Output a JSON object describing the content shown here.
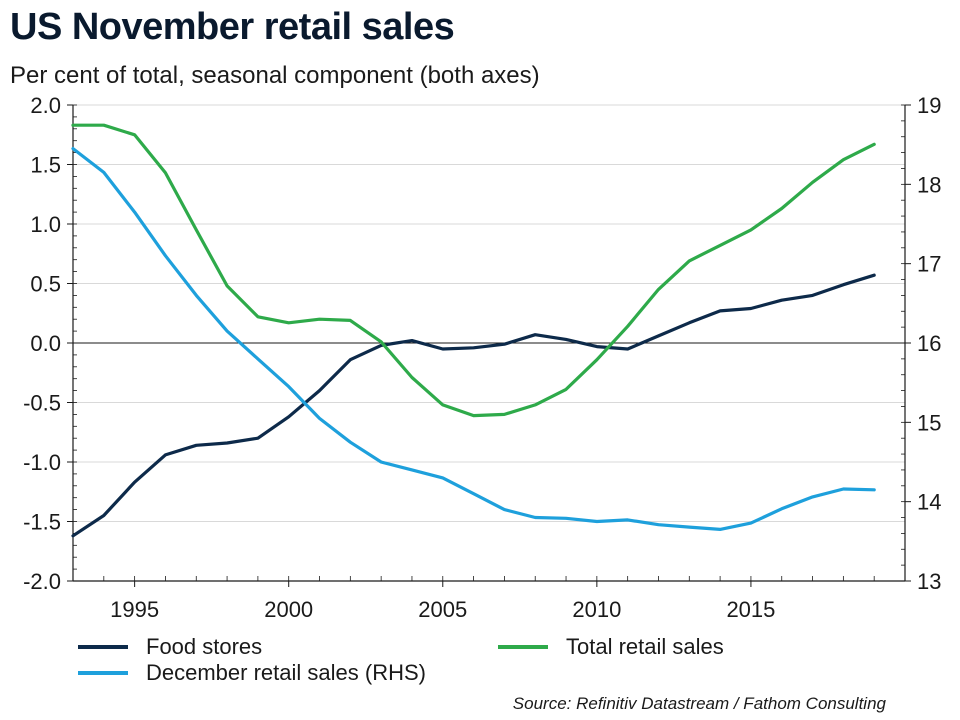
{
  "header": {
    "title": "US November retail sales",
    "subtitle": "Per cent of total, seasonal component (both axes)"
  },
  "source": "Source: Refinitiv Datastream / Fathom Consulting",
  "chart_data": {
    "type": "line",
    "title": "US November retail sales",
    "subtitle": "Per cent of total, seasonal component (both axes)",
    "xlim": [
      1993,
      2020
    ],
    "x_ticks": [
      1995,
      2000,
      2005,
      2010,
      2015
    ],
    "y_left": {
      "lim": [
        -2.0,
        2.0
      ],
      "ticks": [
        -2.0,
        -1.5,
        -1.0,
        -0.5,
        0.0,
        0.5,
        1.0,
        1.5,
        2.0
      ],
      "tick_labels": [
        "-2.0",
        "-1.5",
        "-1.0",
        "-0.5",
        "0.0",
        "0.5",
        "1.0",
        "1.5",
        "2.0"
      ]
    },
    "y_right": {
      "lim": [
        13,
        19
      ],
      "ticks": [
        13,
        14,
        15,
        16,
        17,
        18,
        19
      ],
      "tick_labels": [
        "13",
        "14",
        "15",
        "16",
        "17",
        "18",
        "19"
      ]
    },
    "grid": "horizontal",
    "zero_line": true,
    "legend_position": "bottom",
    "x": [
      1993,
      1994,
      1995,
      1996,
      1997,
      1998,
      1999,
      2000,
      2001,
      2002,
      2003,
      2004,
      2005,
      2006,
      2007,
      2008,
      2009,
      2010,
      2011,
      2012,
      2013,
      2014,
      2015,
      2016,
      2017,
      2018,
      2019
    ],
    "series": [
      {
        "name": "Food stores",
        "axis": "left",
        "color": "#0d2a4a",
        "values": [
          -1.62,
          -1.45,
          -1.17,
          -0.94,
          -0.86,
          -0.84,
          -0.8,
          -0.62,
          -0.4,
          -0.14,
          -0.02,
          0.02,
          -0.05,
          -0.04,
          -0.01,
          0.07,
          0.03,
          -0.03,
          -0.05,
          0.06,
          0.17,
          0.27,
          0.29,
          0.36,
          0.4,
          0.49,
          0.57
        ]
      },
      {
        "name": "Total retail sales",
        "axis": "left",
        "color": "#2eaa4a",
        "values": [
          1.83,
          1.83,
          1.75,
          1.43,
          0.95,
          0.48,
          0.22,
          0.17,
          0.2,
          0.19,
          0.01,
          -0.29,
          -0.52,
          -0.61,
          -0.6,
          -0.52,
          -0.39,
          -0.14,
          0.14,
          0.45,
          0.69,
          0.82,
          0.95,
          1.13,
          1.35,
          1.54,
          1.67
        ]
      },
      {
        "name": "December retail sales (RHS)",
        "axis": "right",
        "color": "#1ea0dc",
        "values": [
          18.45,
          18.15,
          17.65,
          17.1,
          16.6,
          16.15,
          15.8,
          15.45,
          15.05,
          14.75,
          14.5,
          14.4,
          14.3,
          14.1,
          13.9,
          13.8,
          13.79,
          13.75,
          13.77,
          13.71,
          13.68,
          13.65,
          13.73,
          13.91,
          14.06,
          14.16,
          14.15
        ]
      }
    ]
  }
}
